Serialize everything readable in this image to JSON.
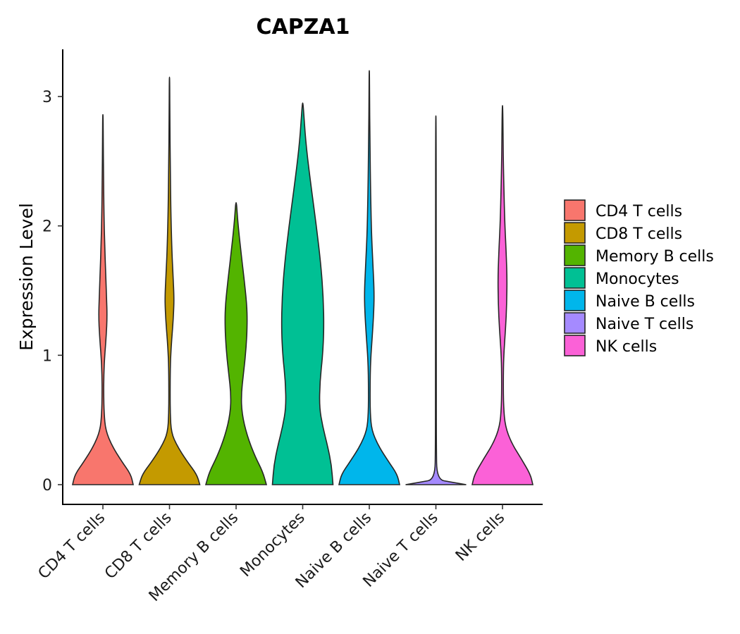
{
  "chart_data": {
    "type": "violin",
    "title": "CAPZA1",
    "xlabel": "",
    "ylabel": "Expression Level",
    "ylim": [
      -0.15,
      3.35
    ],
    "yticks": [
      0,
      1,
      2,
      3
    ],
    "categories": [
      "CD4 T cells",
      "CD8 T cells",
      "Memory B cells",
      "Monocytes",
      "Naive B cells",
      "Naive T cells",
      "NK cells"
    ],
    "legend": {
      "position": "right",
      "entries": [
        "CD4 T cells",
        "CD8 T cells",
        "Memory B cells",
        "Monocytes",
        "Naive B cells",
        "Naive T cells",
        "NK cells"
      ]
    },
    "series": [
      {
        "name": "CD4 T cells",
        "color": "#F8766D",
        "max": 2.86,
        "density": [
          [
            0,
            1.0
          ],
          [
            0.08,
            0.92
          ],
          [
            0.18,
            0.62
          ],
          [
            0.3,
            0.3
          ],
          [
            0.42,
            0.09
          ],
          [
            0.55,
            0.04
          ],
          [
            0.7,
            0.025
          ],
          [
            0.85,
            0.03
          ],
          [
            1.0,
            0.06
          ],
          [
            1.15,
            0.11
          ],
          [
            1.3,
            0.14
          ],
          [
            1.45,
            0.12
          ],
          [
            1.65,
            0.09
          ],
          [
            1.85,
            0.06
          ],
          [
            2.1,
            0.035
          ],
          [
            2.4,
            0.02
          ],
          [
            2.65,
            0.012
          ],
          [
            2.86,
            0.006
          ]
        ]
      },
      {
        "name": "CD8 T cells",
        "color": "#C49A00",
        "max": 3.15,
        "density": [
          [
            0,
            1.0
          ],
          [
            0.08,
            0.9
          ],
          [
            0.18,
            0.58
          ],
          [
            0.3,
            0.25
          ],
          [
            0.4,
            0.06
          ],
          [
            0.55,
            0.025
          ],
          [
            0.7,
            0.02
          ],
          [
            0.9,
            0.025
          ],
          [
            1.05,
            0.05
          ],
          [
            1.2,
            0.1
          ],
          [
            1.35,
            0.14
          ],
          [
            1.45,
            0.15
          ],
          [
            1.6,
            0.12
          ],
          [
            1.8,
            0.08
          ],
          [
            2.1,
            0.045
          ],
          [
            2.5,
            0.025
          ],
          [
            2.8,
            0.012
          ],
          [
            3.15,
            0.006
          ]
        ]
      },
      {
        "name": "Memory B cells",
        "color": "#53B400",
        "max": 2.18,
        "density": [
          [
            0,
            1.0
          ],
          [
            0.1,
            0.88
          ],
          [
            0.22,
            0.62
          ],
          [
            0.38,
            0.36
          ],
          [
            0.55,
            0.19
          ],
          [
            0.7,
            0.17
          ],
          [
            0.85,
            0.24
          ],
          [
            1.05,
            0.33
          ],
          [
            1.25,
            0.37
          ],
          [
            1.4,
            0.35
          ],
          [
            1.6,
            0.26
          ],
          [
            1.8,
            0.16
          ],
          [
            2.0,
            0.07
          ],
          [
            2.12,
            0.03
          ],
          [
            2.18,
            0.01
          ]
        ]
      },
      {
        "name": "Monocytes",
        "color": "#00C094",
        "max": 2.95,
        "density": [
          [
            0,
            1.0
          ],
          [
            0.15,
            0.95
          ],
          [
            0.3,
            0.82
          ],
          [
            0.45,
            0.66
          ],
          [
            0.6,
            0.55
          ],
          [
            0.8,
            0.57
          ],
          [
            1.0,
            0.66
          ],
          [
            1.2,
            0.7
          ],
          [
            1.45,
            0.68
          ],
          [
            1.7,
            0.6
          ],
          [
            2.0,
            0.45
          ],
          [
            2.3,
            0.28
          ],
          [
            2.6,
            0.12
          ],
          [
            2.85,
            0.04
          ],
          [
            2.95,
            0.01
          ]
        ]
      },
      {
        "name": "Naive B cells",
        "color": "#00B6EB",
        "max": 3.2,
        "density": [
          [
            0,
            1.0
          ],
          [
            0.08,
            0.92
          ],
          [
            0.18,
            0.63
          ],
          [
            0.3,
            0.3
          ],
          [
            0.42,
            0.08
          ],
          [
            0.55,
            0.03
          ],
          [
            0.75,
            0.025
          ],
          [
            0.95,
            0.04
          ],
          [
            1.15,
            0.1
          ],
          [
            1.35,
            0.15
          ],
          [
            1.5,
            0.16
          ],
          [
            1.7,
            0.12
          ],
          [
            1.95,
            0.07
          ],
          [
            2.3,
            0.04
          ],
          [
            2.7,
            0.02
          ],
          [
            3.0,
            0.01
          ],
          [
            3.2,
            0.005
          ]
        ]
      },
      {
        "name": "Naive T cells",
        "color": "#A58AFF",
        "max": 2.85,
        "density": [
          [
            0,
            1.0
          ],
          [
            0.02,
            0.5
          ],
          [
            0.04,
            0.03
          ],
          [
            0.3,
            0.015
          ],
          [
            1.0,
            0.012
          ],
          [
            2.0,
            0.012
          ],
          [
            2.85,
            0.008
          ]
        ]
      },
      {
        "name": "NK cells",
        "color": "#FB61D7",
        "max": 2.93,
        "density": [
          [
            0,
            1.0
          ],
          [
            0.08,
            0.92
          ],
          [
            0.2,
            0.62
          ],
          [
            0.32,
            0.3
          ],
          [
            0.45,
            0.09
          ],
          [
            0.6,
            0.035
          ],
          [
            0.8,
            0.025
          ],
          [
            1.0,
            0.04
          ],
          [
            1.2,
            0.1
          ],
          [
            1.4,
            0.14
          ],
          [
            1.6,
            0.15
          ],
          [
            1.8,
            0.12
          ],
          [
            2.05,
            0.07
          ],
          [
            2.4,
            0.035
          ],
          [
            2.7,
            0.018
          ],
          [
            2.93,
            0.008
          ]
        ]
      }
    ]
  }
}
